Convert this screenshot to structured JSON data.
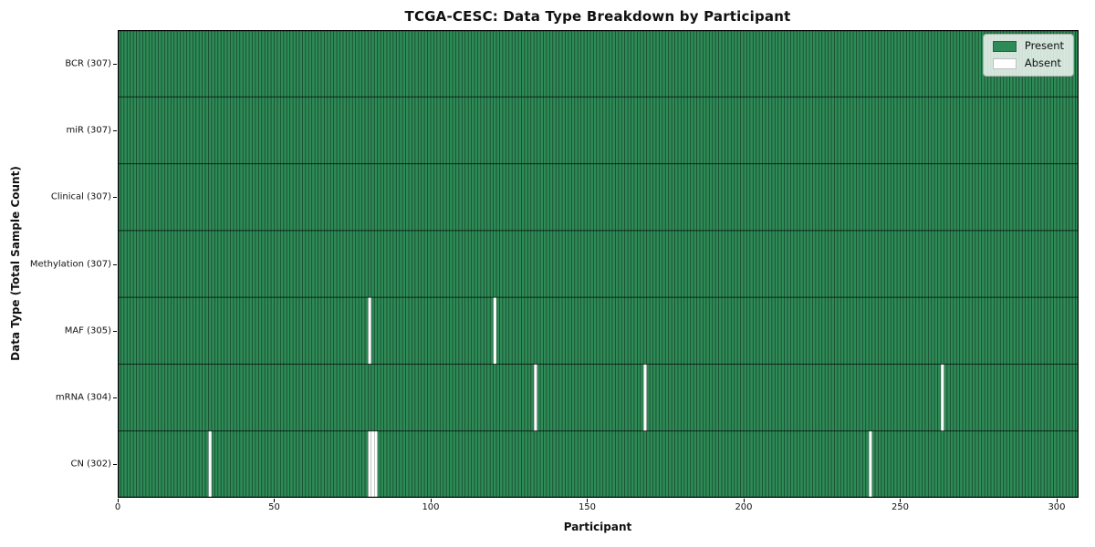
{
  "chart_data": {
    "type": "heatmap",
    "title": "TCGA-CESC: Data Type Breakdown by Participant",
    "xlabel": "Participant",
    "ylabel": "Data Type (Total Sample Count)",
    "xlim": [
      0,
      307
    ],
    "xticks": [
      0,
      50,
      100,
      150,
      200,
      250,
      300
    ],
    "grid": false,
    "legend_position": "upper right",
    "rows": [
      {
        "label": "BCR (307)",
        "data_type": "BCR",
        "total": 307,
        "absent_participants": []
      },
      {
        "label": "miR (307)",
        "data_type": "miR",
        "total": 307,
        "absent_participants": []
      },
      {
        "label": "Clinical (307)",
        "data_type": "Clinical",
        "total": 307,
        "absent_participants": []
      },
      {
        "label": "Methylation (307)",
        "data_type": "Methylation",
        "total": 307,
        "absent_participants": []
      },
      {
        "label": "MAF (305)",
        "data_type": "MAF",
        "total": 305,
        "absent_participants": [
          80,
          120
        ]
      },
      {
        "label": "mRNA (304)",
        "data_type": "mRNA",
        "total": 304,
        "absent_participants": [
          133,
          168,
          263
        ]
      },
      {
        "label": "CN (302)",
        "data_type": "CN",
        "total": 302,
        "absent_participants": [
          29,
          80,
          81,
          82,
          240
        ]
      }
    ],
    "legend": {
      "entries": [
        {
          "label": "Present",
          "color": "#2e8b57"
        },
        {
          "label": "Absent",
          "color": "#ffffff"
        }
      ]
    },
    "colors": {
      "present": "#2e8b57",
      "absent": "#ffffff",
      "bar_edge": "#000000",
      "row_divider": "#000000",
      "axis": "#000000"
    }
  }
}
